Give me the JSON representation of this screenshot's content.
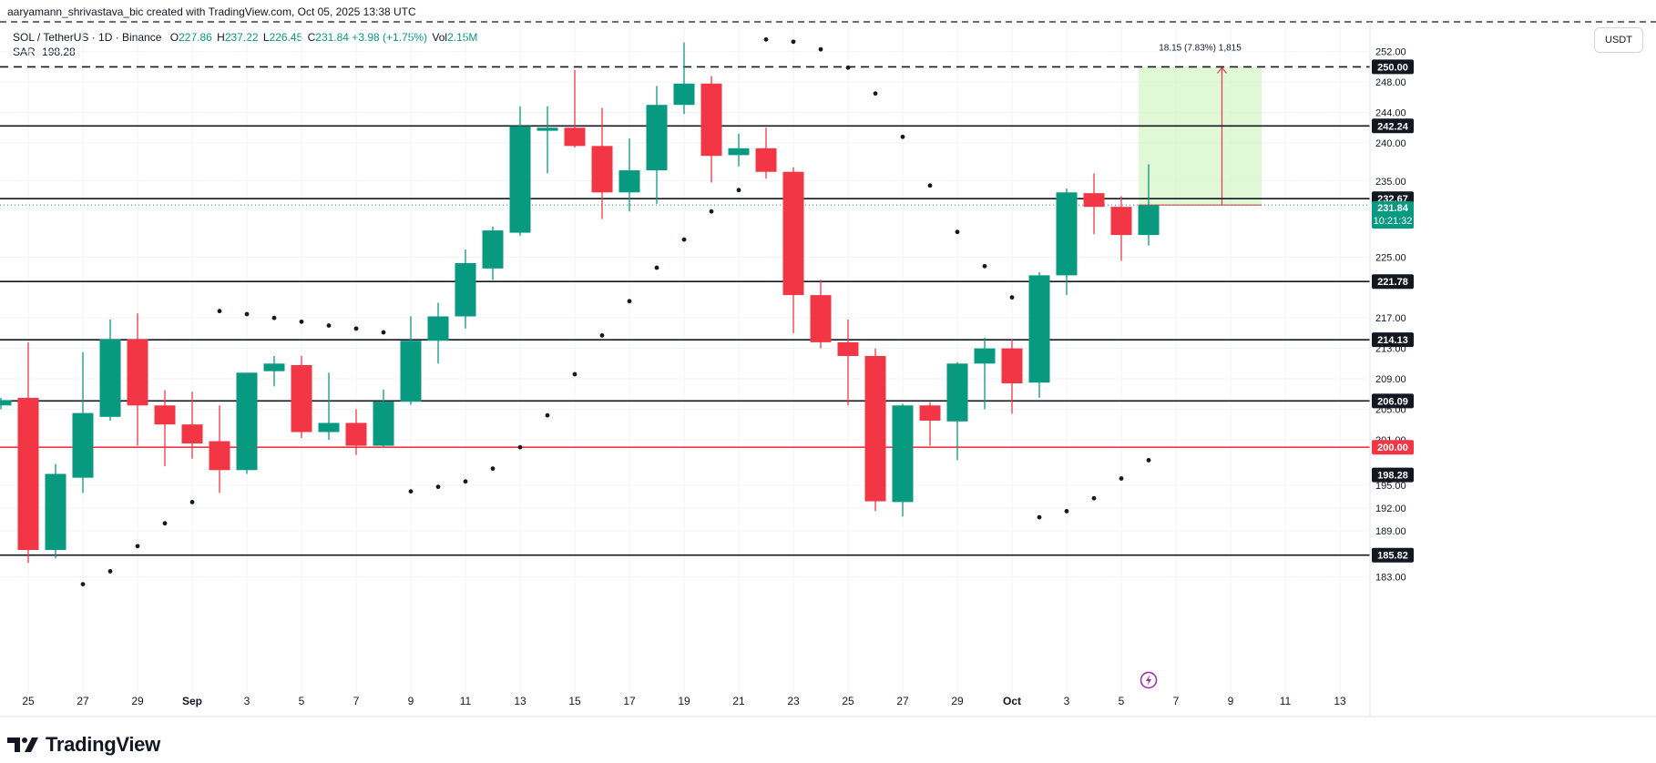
{
  "header": {
    "creator": "aaryamann_shrivastava_bic created with TradingView.com, Oct 05, 2025 13:38 UTC",
    "symbol": "SOL / TetherUS · 1D · Binance",
    "open_label": "O",
    "open": "227.86",
    "high_label": "H",
    "high": "237.22",
    "low_label": "L",
    "low": "226.45",
    "close_label": "C",
    "close": "231.84",
    "change": "+3.98 (+1.75%)",
    "vol_label": "Vol",
    "vol": "2.15M",
    "sar_label": "SAR",
    "sar": "198.28"
  },
  "currency": "USDT",
  "brand": "TradingView",
  "colors": {
    "up": "#089981",
    "down": "#f23645",
    "text": "#131722",
    "grid": "#f0f3fa",
    "target_fill": "#d5f5c8"
  },
  "chart_data": {
    "type": "candlestick",
    "candles": [
      {
        "date": "Aug 24",
        "o": 205.5,
        "h": 206.5,
        "l": 205.0,
        "c": 206.2
      },
      {
        "date": "Aug 25",
        "o": 206.5,
        "h": 213.8,
        "l": 184.8,
        "c": 186.5
      },
      {
        "date": "Aug 26",
        "o": 186.5,
        "h": 197.8,
        "l": 185.4,
        "c": 196.5
      },
      {
        "date": "Aug 27",
        "o": 196.0,
        "h": 212.5,
        "l": 194.0,
        "c": 204.5
      },
      {
        "date": "Aug 28",
        "o": 204.0,
        "h": 216.8,
        "l": 203.5,
        "c": 214.2
      },
      {
        "date": "Aug 29",
        "o": 214.2,
        "h": 217.6,
        "l": 200.2,
        "c": 205.5
      },
      {
        "date": "Aug 30",
        "o": 205.5,
        "h": 207.5,
        "l": 197.5,
        "c": 203.0
      },
      {
        "date": "Aug 31",
        "o": 203.0,
        "h": 207.3,
        "l": 198.5,
        "c": 200.5
      },
      {
        "date": "Sep 1",
        "o": 200.8,
        "h": 205.5,
        "l": 194.0,
        "c": 197.0
      },
      {
        "date": "Sep 2",
        "o": 197.0,
        "h": 209.8,
        "l": 196.5,
        "c": 209.8
      },
      {
        "date": "Sep 3",
        "o": 210.0,
        "h": 212.0,
        "l": 208.0,
        "c": 211.0
      },
      {
        "date": "Sep 4",
        "o": 210.8,
        "h": 212.0,
        "l": 201.2,
        "c": 202.0
      },
      {
        "date": "Sep 5",
        "o": 202.0,
        "h": 209.8,
        "l": 201.0,
        "c": 203.2
      },
      {
        "date": "Sep 6",
        "o": 203.2,
        "h": 205.0,
        "l": 199.0,
        "c": 200.2
      },
      {
        "date": "Sep 7",
        "o": 200.2,
        "h": 207.6,
        "l": 200.0,
        "c": 206.0
      },
      {
        "date": "Sep 8",
        "o": 206.0,
        "h": 217.2,
        "l": 205.6,
        "c": 214.0
      },
      {
        "date": "Sep 9",
        "o": 214.0,
        "h": 219.0,
        "l": 211.0,
        "c": 217.2
      },
      {
        "date": "Sep 10",
        "o": 217.2,
        "h": 226.0,
        "l": 215.6,
        "c": 224.2
      },
      {
        "date": "Sep 11",
        "o": 223.5,
        "h": 229.0,
        "l": 222.0,
        "c": 228.5
      },
      {
        "date": "Sep 12",
        "o": 228.2,
        "h": 244.8,
        "l": 227.8,
        "c": 242.2
      },
      {
        "date": "Sep 13",
        "o": 241.6,
        "h": 244.8,
        "l": 236.0,
        "c": 242.0
      },
      {
        "date": "Sep 14",
        "o": 242.0,
        "h": 249.6,
        "l": 239.4,
        "c": 239.6
      },
      {
        "date": "Sep 15",
        "o": 239.6,
        "h": 244.6,
        "l": 230.0,
        "c": 233.5
      },
      {
        "date": "Sep 16",
        "o": 233.5,
        "h": 240.6,
        "l": 231.0,
        "c": 236.4
      },
      {
        "date": "Sep 17",
        "o": 236.4,
        "h": 247.5,
        "l": 232.0,
        "c": 245.0
      },
      {
        "date": "Sep 18",
        "o": 245.0,
        "h": 253.2,
        "l": 243.8,
        "c": 247.8
      },
      {
        "date": "Sep 19",
        "o": 247.8,
        "h": 248.8,
        "l": 234.8,
        "c": 238.3
      },
      {
        "date": "Sep 20",
        "o": 238.4,
        "h": 241.2,
        "l": 236.9,
        "c": 239.3
      },
      {
        "date": "Sep 21",
        "o": 239.3,
        "h": 242.0,
        "l": 235.3,
        "c": 236.2
      },
      {
        "date": "Sep 22",
        "o": 236.2,
        "h": 236.8,
        "l": 215.0,
        "c": 220.0
      },
      {
        "date": "Sep 23",
        "o": 220.0,
        "h": 222.0,
        "l": 213.0,
        "c": 213.8
      },
      {
        "date": "Sep 24",
        "o": 213.8,
        "h": 216.8,
        "l": 205.5,
        "c": 212.0
      },
      {
        "date": "Sep 25",
        "o": 212.0,
        "h": 213.0,
        "l": 191.6,
        "c": 192.9
      },
      {
        "date": "Sep 26",
        "o": 192.8,
        "h": 205.7,
        "l": 190.9,
        "c": 205.5
      },
      {
        "date": "Sep 27",
        "o": 205.5,
        "h": 205.9,
        "l": 200.2,
        "c": 203.5
      },
      {
        "date": "Sep 28",
        "o": 203.4,
        "h": 211.2,
        "l": 198.3,
        "c": 211.0
      },
      {
        "date": "Sep 29",
        "o": 211.0,
        "h": 214.4,
        "l": 205.0,
        "c": 213.0
      },
      {
        "date": "Sep 30",
        "o": 213.0,
        "h": 214.2,
        "l": 204.4,
        "c": 208.4
      },
      {
        "date": "Oct 1",
        "o": 208.5,
        "h": 223.0,
        "l": 206.5,
        "c": 222.6
      },
      {
        "date": "Oct 2",
        "o": 222.6,
        "h": 234.0,
        "l": 220.0,
        "c": 233.5
      },
      {
        "date": "Oct 3",
        "o": 233.4,
        "h": 236.0,
        "l": 228.0,
        "c": 231.6
      },
      {
        "date": "Oct 4",
        "o": 231.6,
        "h": 233.0,
        "l": 224.5,
        "c": 227.9
      },
      {
        "date": "Oct 5",
        "o": 227.9,
        "h": 237.2,
        "l": 226.5,
        "c": 231.8
      }
    ],
    "sar": [
      {
        "date": "Aug 27",
        "v": 182.0
      },
      {
        "date": "Aug 28",
        "v": 183.7
      },
      {
        "date": "Aug 29",
        "v": 187.0
      },
      {
        "date": "Aug 30",
        "v": 190.0
      },
      {
        "date": "Aug 31",
        "v": 192.8
      },
      {
        "date": "Sep 1",
        "v": 217.9
      },
      {
        "date": "Sep 2",
        "v": 217.5
      },
      {
        "date": "Sep 3",
        "v": 217.0
      },
      {
        "date": "Sep 4",
        "v": 216.5
      },
      {
        "date": "Sep 5",
        "v": 216.0
      },
      {
        "date": "Sep 6",
        "v": 215.6
      },
      {
        "date": "Sep 7",
        "v": 215.1
      },
      {
        "date": "Sep 8",
        "v": 194.2
      },
      {
        "date": "Sep 9",
        "v": 194.8
      },
      {
        "date": "Sep 10",
        "v": 195.5
      },
      {
        "date": "Sep 11",
        "v": 197.2
      },
      {
        "date": "Sep 12",
        "v": 200.0
      },
      {
        "date": "Sep 13",
        "v": 204.2
      },
      {
        "date": "Sep 14",
        "v": 209.6
      },
      {
        "date": "Sep 15",
        "v": 214.7
      },
      {
        "date": "Sep 16",
        "v": 219.2
      },
      {
        "date": "Sep 17",
        "v": 223.6
      },
      {
        "date": "Sep 18",
        "v": 227.3
      },
      {
        "date": "Sep 19",
        "v": 231.0
      },
      {
        "date": "Sep 20",
        "v": 233.8
      },
      {
        "date": "Sep 21",
        "v": 253.6
      },
      {
        "date": "Sep 22",
        "v": 253.3
      },
      {
        "date": "Sep 23",
        "v": 252.3
      },
      {
        "date": "Sep 24",
        "v": 249.9
      },
      {
        "date": "Sep 25",
        "v": 246.5
      },
      {
        "date": "Sep 26",
        "v": 240.8
      },
      {
        "date": "Sep 27",
        "v": 234.4
      },
      {
        "date": "Sep 28",
        "v": 228.3
      },
      {
        "date": "Sep 29",
        "v": 223.8
      },
      {
        "date": "Sep 30",
        "v": 219.7
      },
      {
        "date": "Oct 1",
        "v": 190.8
      },
      {
        "date": "Oct 2",
        "v": 191.6
      },
      {
        "date": "Oct 3",
        "v": 193.3
      },
      {
        "date": "Oct 4",
        "v": 195.9
      },
      {
        "date": "Oct 5",
        "v": 198.3
      }
    ],
    "horizontal_lines": [
      {
        "value": 250.0,
        "label": "250.00",
        "style": "dashed",
        "color": "#131722"
      },
      {
        "value": 242.24,
        "label": "242.24",
        "style": "solid",
        "color": "#131722"
      },
      {
        "value": 232.67,
        "label": "232.67",
        "style": "solid",
        "color": "#131722"
      },
      {
        "value": 221.78,
        "label": "221.78",
        "style": "solid",
        "color": "#131722"
      },
      {
        "value": 214.13,
        "label": "214.13",
        "style": "solid",
        "color": "#131722"
      },
      {
        "value": 206.09,
        "label": "206.09",
        "style": "solid",
        "color": "#131722"
      },
      {
        "value": 200.0,
        "label": "200.00",
        "style": "solid",
        "color": "#f23645"
      },
      {
        "value": 185.82,
        "label": "185.82",
        "style": "solid",
        "color": "#131722"
      }
    ],
    "current_price": {
      "value": 231.84,
      "label": "231.84",
      "countdown": "10:21:32"
    },
    "sar_label": "198.28",
    "y_ticks": [
      "252.00",
      "248.00",
      "244.00",
      "240.00",
      "235.00",
      "225.00",
      "217.00",
      "213.00",
      "209.00",
      "205.00",
      "201.00",
      "195.00",
      "192.00",
      "189.00",
      "183.00"
    ],
    "x_ticks": [
      "25",
      "27",
      "29",
      "Sep",
      "3",
      "5",
      "7",
      "9",
      "11",
      "13",
      "15",
      "17",
      "19",
      "21",
      "23",
      "25",
      "27",
      "29",
      "Oct",
      "3",
      "5",
      "7",
      "9",
      "11",
      "13"
    ],
    "measure": {
      "from": 231.84,
      "to": 250.0,
      "start_date": "Oct 5",
      "end_date": "Oct 9",
      "label": "18.15 (7.83%) 1,815"
    }
  }
}
